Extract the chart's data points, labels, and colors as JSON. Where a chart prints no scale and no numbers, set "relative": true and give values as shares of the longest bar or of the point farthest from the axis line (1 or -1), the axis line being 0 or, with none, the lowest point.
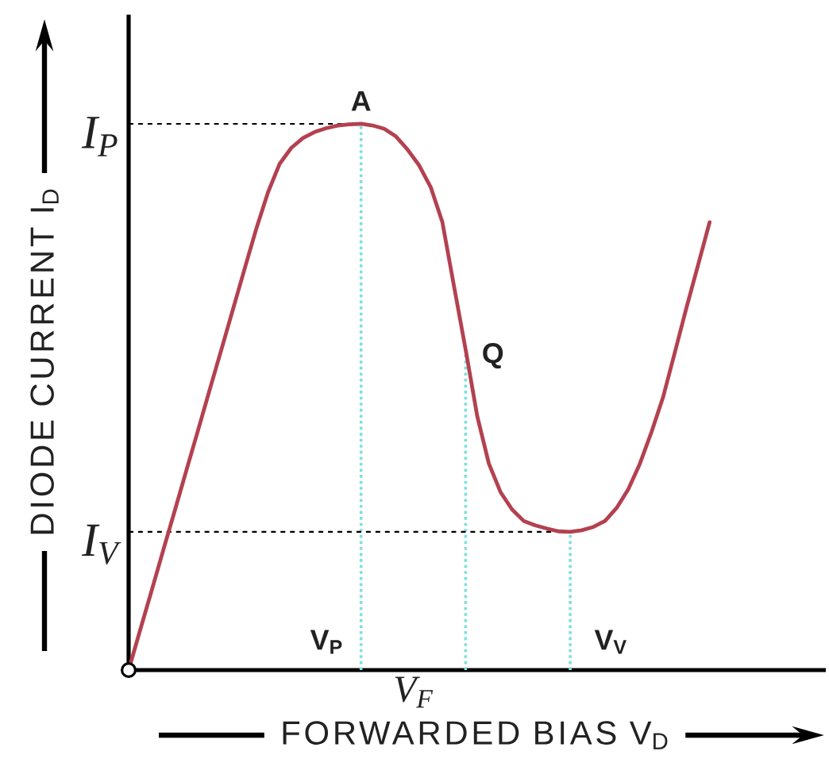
{
  "chart_data": {
    "type": "line",
    "relative": true,
    "xlabel": "FORWARDED BIAS V$_{D}$",
    "ylabel": "DIODE CURRENT I$_{D}$",
    "categories": [
      null,
      null,
      null,
      null,
      null,
      null,
      null,
      null,
      null,
      null,
      null,
      null,
      null,
      null,
      null,
      null,
      null,
      null,
      null,
      null,
      null,
      null,
      null,
      null,
      null,
      null,
      null,
      null,
      null,
      null,
      null,
      null,
      null,
      null,
      null,
      null,
      null,
      null,
      null,
      null,
      null,
      null,
      null,
      null,
      null,
      null,
      null,
      null,
      null,
      null,
      null
    ],
    "series": [
      {
        "color": "#b34150",
        "values": [
          0,
          0.074,
          0.147,
          0.221,
          0.294,
          0.368,
          0.441,
          0.515,
          0.588,
          0.662,
          0.736,
          0.809,
          0.875,
          0.927,
          0.956,
          0.974,
          0.985,
          0.992,
          0.997,
          0.999,
          1,
          0.997,
          0.991,
          0.977,
          0.953,
          0.924,
          0.884,
          0.82,
          0.703,
          0.587,
          0.465,
          0.378,
          0.326,
          0.294,
          0.273,
          0.265,
          0.259,
          0.254,
          0.253,
          0.256,
          0.262,
          0.273,
          0.297,
          0.331,
          0.378,
          0.436,
          0.5,
          0.581,
          0.663,
          0.741,
          0.82
        ]
      }
    ],
    "line_style": "solid",
    "ref_lines": [
      {
        "axis": "y",
        "value": 1,
        "label": "I$_{P}$",
        "color": "#000000",
        "line_style": "dashed"
      },
      {
        "axis": "y",
        "value": 0.253,
        "label": "I$_{V}$",
        "color": "#000000",
        "line_style": "dashed"
      }
    ],
    "annotations": [
      "A",
      "Q",
      "V$_{P}$",
      "V$_{V}$",
      "V$_{F}$"
    ]
  }
}
